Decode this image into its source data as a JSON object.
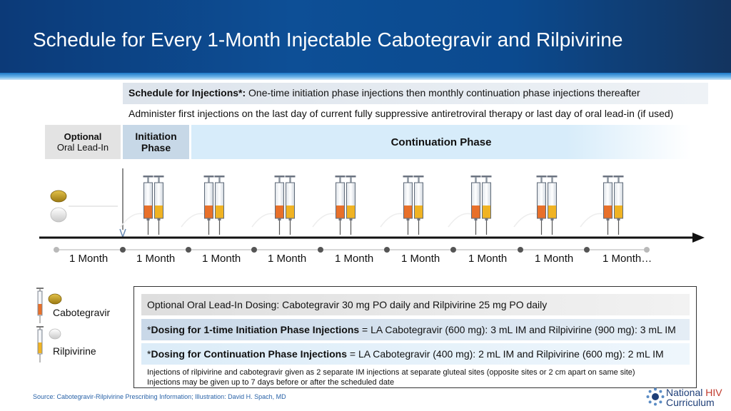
{
  "header": {
    "title": "Schedule for Every 1-Month Injectable Cabotegravir and Rilpivirine"
  },
  "schedule": {
    "label": "Schedule for Injections*:",
    "text": "One-time initiation phase injections then monthly continuation phase injections thereafter",
    "administer": "Administer first injections on the last day of current fully suppressive antiretroviral therapy or last day of oral lead-in (if used)"
  },
  "phases": {
    "oral_line1": "Optional",
    "oral_line2": "Oral Lead-In",
    "init_line1": "Initiation",
    "init_line2": "Phase",
    "continuation": "Continuation Phase"
  },
  "timeline": {
    "months": [
      "1 Month",
      "1 Month",
      "1 Month",
      "1 Month",
      "1 Month",
      "1 Month",
      "1 Month",
      "1 Month",
      "1 Month…"
    ]
  },
  "legend": {
    "cabotegravir": "Cabotegravir",
    "rilpivirine": "Rilpivirine"
  },
  "dosing": {
    "oral": "Optional Oral Lead-In Dosing: Cabotegravir 30 mg PO daily and Rilpivirine 25 mg PO daily",
    "init_prefix": "*",
    "init_label": "Dosing for 1-time Initiation Phase Injections",
    "init_text": " = LA Cabotegravir (600 mg): 3 mL IM and Rilpivirine (900 mg): 3 mL IM",
    "cont_prefix": "*",
    "cont_label": "Dosing for Continuation Phase Injections",
    "cont_text": " = LA Cabotegravir (400 mg): 2 mL IM and Rilpivirine (600 mg): 2 mL IM",
    "note1": "Injections of rilpivirine and cabotegravir given as 2 separate IM injections at separate gluteal sites (opposite sites or 2 cm apart on same site)",
    "note2": "Injections may be given up to 7 days before or after the scheduled date"
  },
  "footer": {
    "source": "Source: Cabotegravir-Rilpivirine Prescribing Information; Illustration: David H. Spach, MD",
    "logo_line1": "National",
    "logo_hiv": "HIV",
    "logo_line2": "Curriculum"
  },
  "colors": {
    "header_blue": "#0d4f96",
    "cabotegravir": "#e8702a",
    "rilpivirine": "#f0b323",
    "tablet_gold": "#c9a227"
  }
}
